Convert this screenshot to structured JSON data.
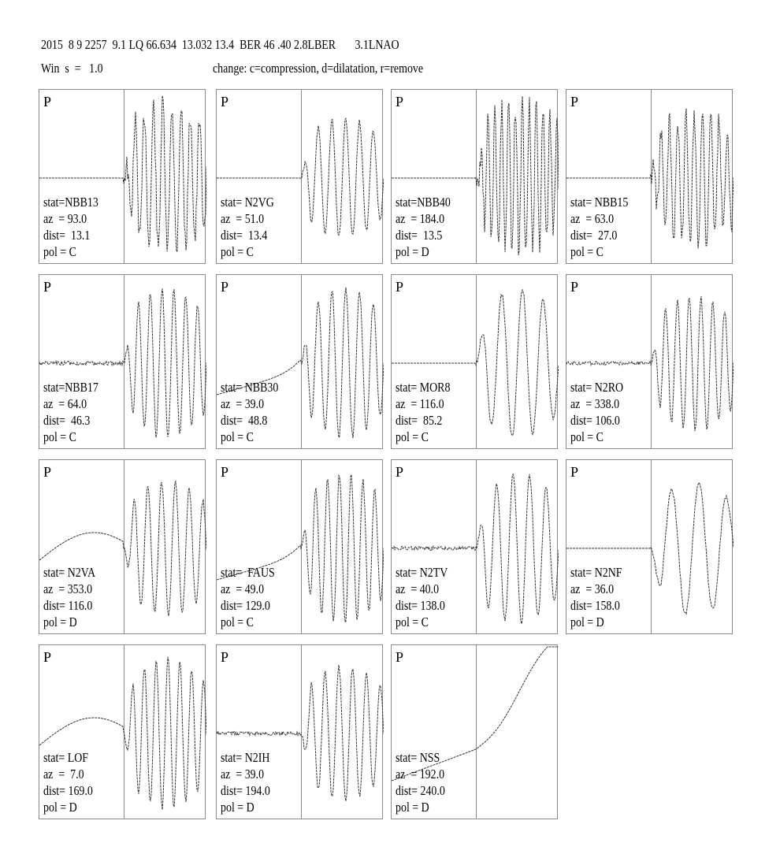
{
  "header": {
    "line1": "2015  8 9 2257  9.1 LQ 66.634  13.032 13.4  BER 46 .40 2.8LBER       3.1LNAO",
    "win": "Win  s  =   1.0",
    "change": "change: c=compression, d=dilatation, r=remove"
  },
  "chart_data": {
    "type": "line",
    "description_fields": [
      "stat",
      "az",
      "dist",
      "pol"
    ],
    "panels": [
      {
        "phase": "P",
        "stat": "stat=NBB13",
        "az": "az  = 93.0",
        "dist": "dist=  13.1",
        "pol": "pol = C",
        "pre": "flat",
        "amp": 1.0,
        "freq": 9
      },
      {
        "phase": "P",
        "stat": "stat= N2VG",
        "az": "az  = 51.0",
        "dist": "dist=  13.4",
        "pol": "pol = C",
        "pre": "flat",
        "amp": 0.8,
        "freq": 6
      },
      {
        "phase": "P",
        "stat": "stat=NBB40",
        "az": "az  = 184.0",
        "dist": "dist=  13.5",
        "pol": "pol = D",
        "pre": "flat",
        "amp": 1.0,
        "freq": 12
      },
      {
        "phase": "P",
        "stat": "stat= NBB15",
        "az": "az  = 63.0",
        "dist": "dist=  27.0",
        "pol": "pol = C",
        "pre": "flat",
        "amp": 0.9,
        "freq": 10
      },
      {
        "phase": "P",
        "stat": "stat=NBB17",
        "az": "az  = 64.0",
        "dist": "dist=  46.3",
        "pol": "pol = C",
        "pre": "noise",
        "amp": 1.0,
        "freq": 7
      },
      {
        "phase": "P",
        "stat": "stat= NBB30",
        "az": "az  = 39.0",
        "dist": "dist=  48.8",
        "pol": "pol = C",
        "pre": "rise",
        "amp": 1.0,
        "freq": 6
      },
      {
        "phase": "P",
        "stat": "stat= MOR8",
        "az": "az  = 116.0",
        "dist": "dist=  85.2",
        "pol": "pol = C",
        "pre": "flat",
        "amp": 1.0,
        "freq": 4
      },
      {
        "phase": "P",
        "stat": "stat= N2RO",
        "az": "az  = 338.0",
        "dist": "dist= 106.0",
        "pol": "pol = C",
        "pre": "noise",
        "amp": 0.9,
        "freq": 7
      },
      {
        "phase": "P",
        "stat": "stat= N2VA",
        "az": "az  = 353.0",
        "dist": "dist= 116.0",
        "pol": "pol = D",
        "pre": "hump",
        "amp": 0.9,
        "freq": 6
      },
      {
        "phase": "P",
        "stat": "stat=  FAUS",
        "az": "az  = 49.0",
        "dist": "dist= 129.0",
        "pol": "pol = C",
        "pre": "rise",
        "amp": 1.0,
        "freq": 7
      },
      {
        "phase": "P",
        "stat": "stat= N2TV",
        "az": "az  = 40.0",
        "dist": "dist= 138.0",
        "pol": "pol = C",
        "pre": "noise",
        "amp": 1.0,
        "freq": 5
      },
      {
        "phase": "P",
        "stat": "stat= N2NF",
        "az": "az  = 36.0",
        "dist": "dist= 158.0",
        "pol": "pol = D",
        "pre": "flat",
        "amp": 0.9,
        "freq": 3
      },
      {
        "phase": "P",
        "stat": "stat= LOF",
        "az": "az  =  7.0",
        "dist": "dist= 169.0",
        "pol": "pol = D",
        "pre": "hump",
        "amp": 1.0,
        "freq": 7
      },
      {
        "phase": "P",
        "stat": "stat= N2IH",
        "az": "az  = 39.0",
        "dist": "dist= 194.0",
        "pol": "pol = D",
        "pre": "noise",
        "amp": 0.9,
        "freq": 6
      },
      {
        "phase": "P",
        "stat": "stat= NSS",
        "az": "az  = 192.0",
        "dist": "dist= 240.0",
        "pol": "pol = D",
        "pre": "slope",
        "amp": 1.0,
        "freq": 1
      }
    ]
  }
}
